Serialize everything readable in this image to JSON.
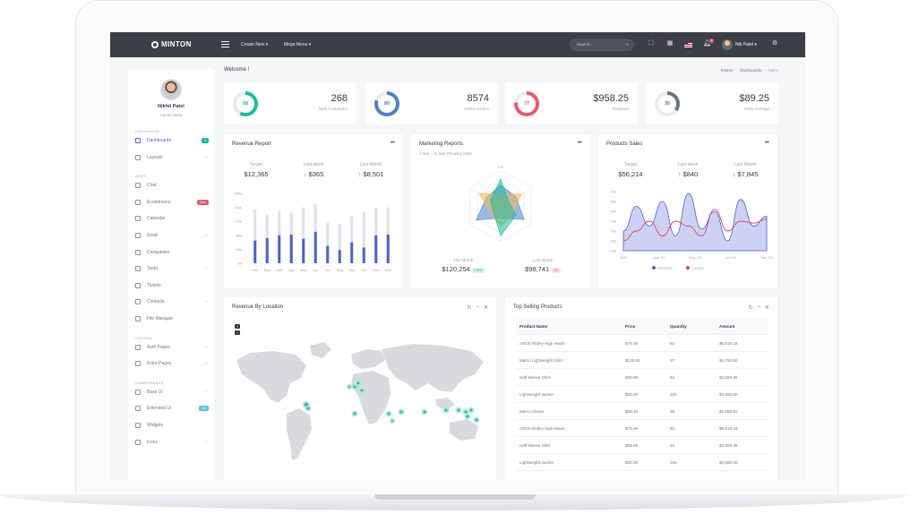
{
  "topbar": {
    "logo": "MINTON",
    "nav": [
      "Create New",
      "Mega Menu"
    ],
    "search_placeholder": "Search...",
    "notif_count": "9",
    "user": "Nik Patel"
  },
  "sidebar": {
    "name": "Nikhil Patel",
    "role": "Admin Head",
    "sections": [
      {
        "title": "Navigation",
        "items": [
          {
            "label": "Dashboards",
            "badge": "3",
            "badge_color": "#1abc9c",
            "active": true
          },
          {
            "label": "Layouts",
            "chev": true
          }
        ]
      },
      {
        "title": "Apps",
        "items": [
          {
            "label": "Chat"
          },
          {
            "label": "Ecommerce",
            "badge": "New",
            "badge_color": "#f1556c"
          },
          {
            "label": "Calendar"
          },
          {
            "label": "Email",
            "chev": true
          },
          {
            "label": "Companies"
          },
          {
            "label": "Tasks",
            "chev": true
          },
          {
            "label": "Tickets"
          },
          {
            "label": "Contacts",
            "chev": true
          },
          {
            "label": "File Manager"
          }
        ]
      },
      {
        "title": "Custom",
        "items": [
          {
            "label": "Auth Pages",
            "chev": true
          },
          {
            "label": "Extra Pages",
            "chev": true
          }
        ]
      },
      {
        "title": "Components",
        "items": [
          {
            "label": "Base UI",
            "chev": true
          },
          {
            "label": "Extended UI",
            "badge": "Hot",
            "badge_color": "#4fc6e1"
          },
          {
            "label": "Widgets"
          },
          {
            "label": "Icons",
            "chev": true
          }
        ]
      }
    ]
  },
  "header": {
    "welcome": "Welcome !",
    "breadcrumb": [
      "Minton",
      "Dashboards",
      "Sales"
    ]
  },
  "stats": [
    {
      "ring": "58",
      "value": "268",
      "label": "New Customers",
      "color": "#1abc9c",
      "fraction": 0.58
    },
    {
      "ring": "80",
      "value": "8574",
      "label": "Online Orders",
      "color": "#4a81d4",
      "fraction": 0.8
    },
    {
      "ring": "77",
      "value": "$958.25",
      "label": "Revenue",
      "color": "#f1556c",
      "fraction": 0.77
    },
    {
      "ring": "35",
      "value": "$89.25",
      "label": "Daily Average",
      "color": "#6c757d",
      "fraction": 0.35
    }
  ],
  "revenue_report": {
    "title": "Revenue Report",
    "kpis": [
      {
        "label": "Target",
        "value": "$12,365",
        "dir": ""
      },
      {
        "label": "Last week",
        "value": "$365",
        "dir": "down"
      },
      {
        "label": "Last Month",
        "value": "$8,501",
        "dir": "up"
      }
    ]
  },
  "marketing": {
    "title": "Marketing Reports",
    "subtitle": "1 Mar - 31 Mar Showing Data",
    "radar_max_label": "120",
    "this_month_label": "This Month",
    "this_month_value": "$120,254",
    "this_month_change": "+16%",
    "last_month_label": "Last Month",
    "last_month_value": "$98,741",
    "last_month_change": "-8%"
  },
  "products_sales": {
    "title": "Products Sales",
    "kpis": [
      {
        "label": "Target",
        "value": "$56,214",
        "dir": ""
      },
      {
        "label": "Last week",
        "value": "$840",
        "dir": "up"
      },
      {
        "label": "Last Month",
        "value": "$7,845",
        "dir": "down"
      }
    ],
    "legend": [
      "Desktops",
      "Laptops"
    ]
  },
  "chart_data": [
    {
      "type": "bar",
      "title": "Revenue Report",
      "categories": [
        "Jan",
        "Feb",
        "Mar",
        "Apr",
        "May",
        "Jun",
        "Jul",
        "Aug",
        "Sep",
        "Oct",
        "Nov",
        "Dec"
      ],
      "y_ticks": [
        "200k",
        "160k",
        "120k",
        "80k",
        "40k",
        "0k"
      ],
      "ylim": [
        0,
        200
      ],
      "series": [
        {
          "values": [
            65,
            72,
            80,
            82,
            70,
            90,
            50,
            38,
            60,
            45,
            80,
            82
          ],
          "color": "#4a5fd8"
        },
        {
          "values": [
            155,
            140,
            150,
            145,
            160,
            170,
            118,
            112,
            135,
            148,
            158,
            160
          ],
          "color": "#dde1ec"
        }
      ]
    },
    {
      "type": "radar",
      "title": "Marketing Reports",
      "axes": 6,
      "ylim": [
        0,
        120
      ],
      "series": [
        {
          "values": [
            70,
            60,
            90,
            40,
            95,
            55
          ],
          "color": "#4a81d4"
        },
        {
          "values": [
            40,
            80,
            50,
            70,
            40,
            85
          ],
          "color": "#f7b84b"
        },
        {
          "values": [
            90,
            30,
            60,
            100,
            30,
            40
          ],
          "color": "#1abc9c"
        }
      ]
    },
    {
      "type": "area",
      "title": "Products Sales",
      "x_ticks": [
        "2020",
        "Mar '20",
        "May '20",
        "Jul '20",
        "Sep '20"
      ],
      "y_ticks": [
        "70k",
        "60k",
        "50k",
        "40k",
        "30k",
        "20k",
        "10k"
      ],
      "ylim": [
        10,
        70
      ],
      "series": [
        {
          "name": "Desktops",
          "values": [
            30,
            55,
            35,
            60,
            25,
            68,
            32,
            50,
            20,
            62,
            35,
            45
          ],
          "color": "#4a5fd8"
        },
        {
          "name": "Laptops",
          "values": [
            20,
            30,
            40,
            25,
            40,
            35,
            25,
            52,
            30,
            40,
            38,
            42
          ],
          "color": "#e0445a"
        }
      ]
    }
  ],
  "revenue_location": {
    "title": "Revenue By Location",
    "zoom_in": "+",
    "zoom_out": "−"
  },
  "top_products": {
    "title": "Top Selling Products",
    "columns": [
      "Product Name",
      "Price",
      "Quantity",
      "Amount"
    ],
    "rows": [
      [
        "ASOS Ridley High Waist",
        "$79.49",
        "82",
        "$6,518.18"
      ],
      [
        "Marco Lightweight Shirt",
        "$128.50",
        "37",
        "$4,754.50"
      ],
      [
        "Half Sleeve Shirt",
        "$39.99",
        "64",
        "$2,559.36"
      ],
      [
        "Lightweight Jacket",
        "$20.00",
        "184",
        "$3,680.00"
      ],
      [
        "Marco Shoes",
        "$28.49",
        "69",
        "$1,965.81"
      ],
      [
        "ASOS Ridley High Waist",
        "$79.49",
        "82",
        "$6,518.18"
      ],
      [
        "Half Sleeve Shirt",
        "$39.99",
        "64",
        "$2,559.36"
      ],
      [
        "Lightweight Jacket",
        "$20.00",
        "184",
        "$3,680.00"
      ]
    ]
  }
}
